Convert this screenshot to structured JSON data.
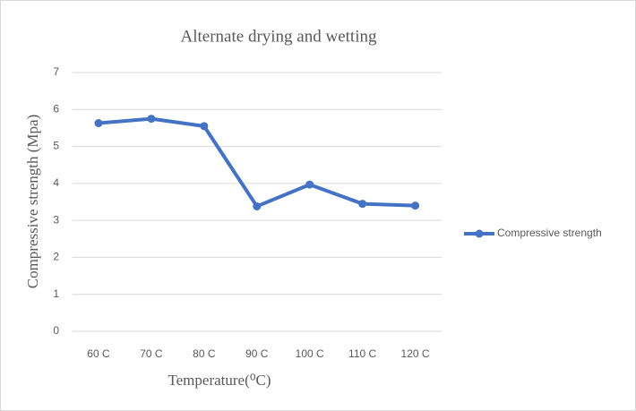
{
  "chart_data": {
    "type": "line",
    "title": "Alternate drying and wetting",
    "x_label": "Temperature(⁰C)",
    "y_label": "Compressive strength (Mpa)",
    "categories": [
      "60 C",
      "70 C",
      "80 C",
      "90 C",
      "100 C",
      "110 C",
      "120 C"
    ],
    "series": [
      {
        "name": "Compressive strength",
        "color": "#4472c4",
        "values": [
          5.63,
          5.75,
          5.55,
          3.38,
          3.97,
          3.45,
          3.4
        ]
      }
    ],
    "ylim": [
      0,
      7
    ],
    "yticks": [
      0,
      1,
      2,
      3,
      4,
      5,
      6,
      7
    ],
    "grid": true,
    "legend": "right"
  }
}
